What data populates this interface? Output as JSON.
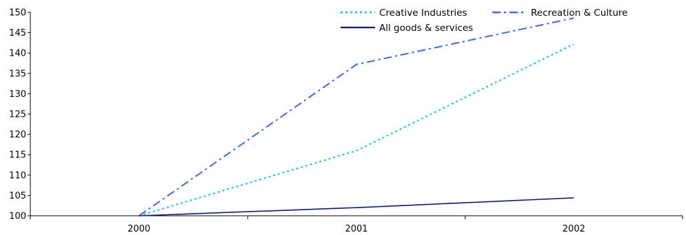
{
  "chart_data": {
    "type": "line",
    "title": "",
    "xlabel": "",
    "ylabel": "",
    "categories": [
      "2000",
      "2001",
      "2002"
    ],
    "ylim": [
      100,
      150
    ],
    "y_ticks": [
      "100",
      "105",
      "110",
      "115",
      "120",
      "125",
      "130",
      "135",
      "140",
      "145",
      "150"
    ],
    "grid": false,
    "legend_position": "top-right",
    "series": [
      {
        "name": "Creative Industries",
        "values": [
          100,
          116,
          142.2
        ],
        "color": "#1ec8e6",
        "style": "dotted"
      },
      {
        "name": "Recreation & Culture",
        "values": [
          100,
          137.2,
          148.6
        ],
        "color": "#3a6be0",
        "style": "dash-dot"
      },
      {
        "name": "All goods & services",
        "values": [
          100,
          102,
          104.4
        ],
        "color": "#111a6e",
        "style": "solid"
      }
    ]
  }
}
